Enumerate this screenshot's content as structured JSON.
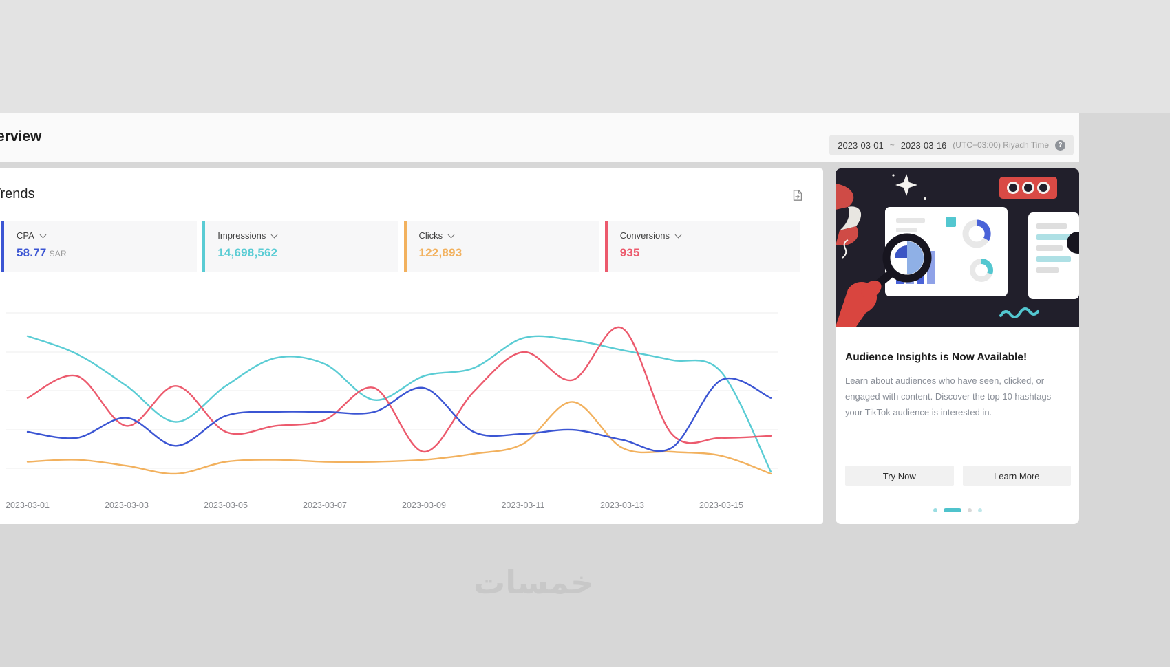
{
  "header": {
    "title": "Overview",
    "date_range": {
      "start": "2023-03-01",
      "separator": "~",
      "end": "2023-03-16",
      "timezone": "(UTC+03:00) Riyadh Time",
      "help_glyph": "?"
    }
  },
  "trends": {
    "title": "Trends",
    "metrics": [
      {
        "label": "CPA",
        "value": "58.77",
        "suffix": "SAR",
        "color": "#3b55d3"
      },
      {
        "label": "Impressions",
        "value": "14,698,562",
        "suffix": "",
        "color": "#5accd4"
      },
      {
        "label": "Clicks",
        "value": "122,893",
        "suffix": "",
        "color": "#f2b15e"
      },
      {
        "label": "Conversions",
        "value": "935",
        "suffix": "",
        "color": "#ec5a6d"
      }
    ]
  },
  "chart_data": {
    "type": "line",
    "title": "Trends",
    "x": [
      "2023-03-01",
      "2023-03-02",
      "2023-03-03",
      "2023-03-04",
      "2023-03-05",
      "2023-03-06",
      "2023-03-07",
      "2023-03-08",
      "2023-03-09",
      "2023-03-10",
      "2023-03-11",
      "2023-03-12",
      "2023-03-13",
      "2023-03-14",
      "2023-03-15",
      "2023-03-16"
    ],
    "x_tick_labels": [
      "2023-03-01",
      "2023-03-03",
      "2023-03-05",
      "2023-03-07",
      "2023-03-09",
      "2023-03-11",
      "2023-03-13",
      "2023-03-15"
    ],
    "ylim": [
      0,
      100
    ],
    "grid": true,
    "legend": "none",
    "note": "No y-axis tick labels are visible; series values are relative estimates (percent of plot height).",
    "series": [
      {
        "name": "CPA",
        "color": "#3b55d3",
        "values": [
          30,
          27,
          37,
          23,
          38,
          40,
          40,
          40,
          52,
          30,
          29,
          31,
          26,
          22,
          56,
          47
        ]
      },
      {
        "name": "Impressions",
        "color": "#5accd4",
        "values": [
          78,
          69,
          53,
          35,
          53,
          67,
          64,
          46,
          58,
          62,
          77,
          76,
          71,
          66,
          60,
          10
        ]
      },
      {
        "name": "Clicks",
        "color": "#f2b15e",
        "values": [
          15,
          16,
          13,
          9,
          15,
          16,
          15,
          15,
          16,
          19,
          24,
          45,
          22,
          20,
          18,
          9
        ]
      },
      {
        "name": "Conversions",
        "color": "#ec5a6d",
        "values": [
          47,
          58,
          33,
          53,
          30,
          33,
          36,
          52,
          20,
          50,
          70,
          56,
          82,
          29,
          27,
          28
        ]
      }
    ]
  },
  "promo_card": {
    "title": "Audience Insights is Now Available!",
    "body": "Learn about audiences who have seen, clicked, or engaged with content. Discover the top 10 hashtags your TikTok audience is interested in.",
    "buttons": [
      {
        "label": "Try Now"
      },
      {
        "label": "Learn More"
      }
    ],
    "carousel": {
      "active_index": 1,
      "dot_colors": [
        "#9adde2",
        "#4fc3cc",
        "#d9d9d9",
        "#bfe7ea"
      ]
    }
  },
  "watermark": "خمسات"
}
